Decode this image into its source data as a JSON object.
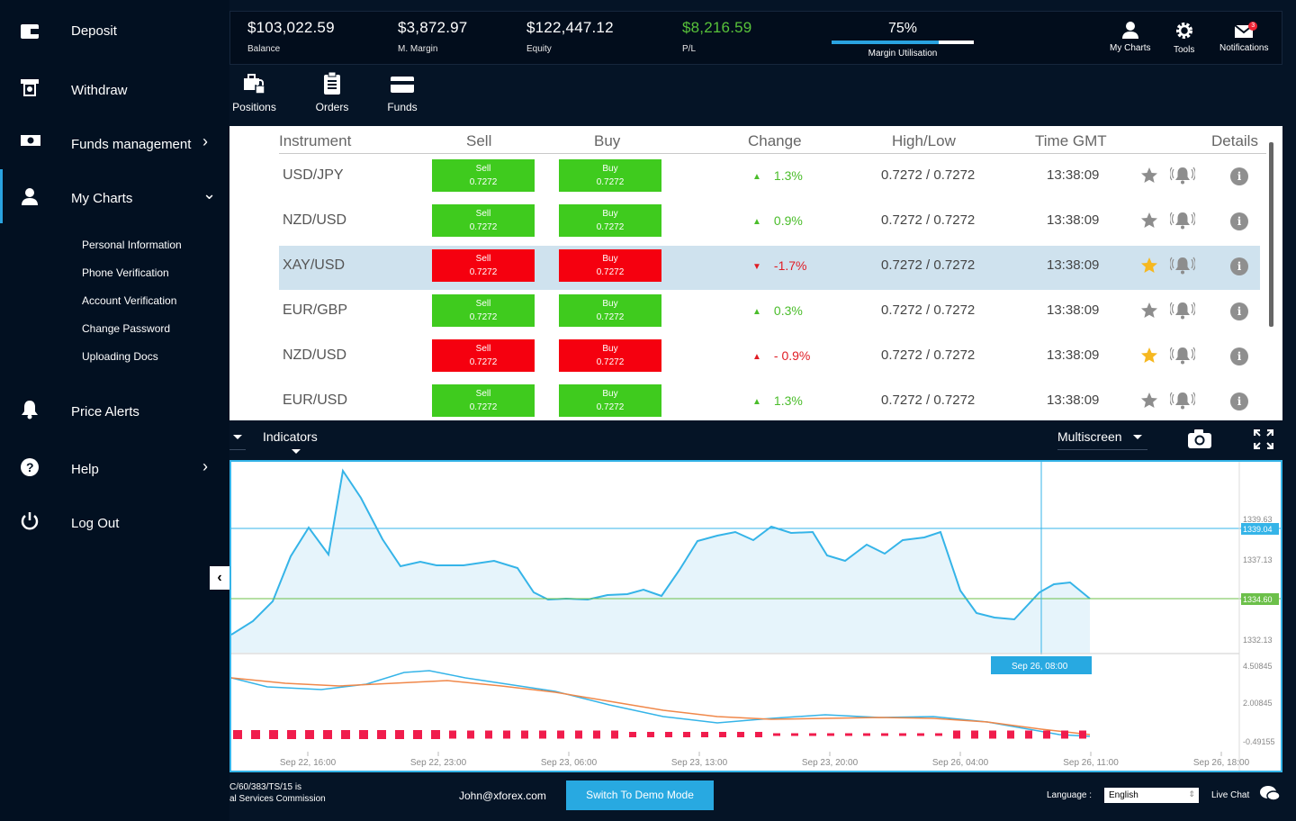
{
  "topbar": {
    "stats": [
      {
        "value": "$103,022.59",
        "label": "Balance"
      },
      {
        "value": "$3,872.97",
        "label": "M. Margin"
      },
      {
        "value": "$122,447.12",
        "label": "Equity"
      },
      {
        "value": "$8,216.59",
        "label": "P/L"
      }
    ],
    "margin_util": {
      "value": "75%",
      "label": "Margin Utilisation",
      "fraction": 0.75
    },
    "icons": [
      {
        "label": "My Charts",
        "icon": "user-icon"
      },
      {
        "label": "Tools",
        "icon": "gear-icon"
      },
      {
        "label": "Notifications",
        "icon": "mail-icon",
        "badge": "3"
      }
    ]
  },
  "nav": [
    {
      "label": "Positions",
      "icon": "briefcase-lock-icon"
    },
    {
      "label": "Orders",
      "icon": "clipboard-icon"
    },
    {
      "label": "Funds",
      "icon": "card-icon"
    }
  ],
  "table": {
    "headers": [
      "Instrument",
      "Sell",
      "Buy",
      "Change",
      "High/Low",
      "Time GMT",
      "Details"
    ],
    "rows": [
      {
        "instrument": "USD/JPY",
        "sell": "Sell",
        "sell_val": "0.7272",
        "buy": "Buy",
        "buy_val": "0.7272",
        "color": "green",
        "change": "1.3%",
        "dir": "up",
        "highlow": "0.7272 / 0.7272",
        "time": "13:38:09",
        "fav": false,
        "selected": false
      },
      {
        "instrument": "NZD/USD",
        "sell": "Sell",
        "sell_val": "0.7272",
        "buy": "Buy",
        "buy_val": "0.7272",
        "color": "green",
        "change": "0.9%",
        "dir": "up",
        "highlow": "0.7272 / 0.7272",
        "time": "13:38:09",
        "fav": false,
        "selected": false
      },
      {
        "instrument": "XAY/USD",
        "sell": "Sell",
        "sell_val": "0.7272",
        "buy": "Buy",
        "buy_val": "0.7272",
        "color": "red",
        "change": "-1.7%",
        "dir": "down",
        "highlow": "0.7272 / 0.7272",
        "time": "13:38:09",
        "fav": true,
        "selected": true
      },
      {
        "instrument": "EUR/GBP",
        "sell": "Sell",
        "sell_val": "0.7272",
        "buy": "Buy",
        "buy_val": "0.7272",
        "color": "green",
        "change": "0.3%",
        "dir": "up",
        "highlow": "0.7272 / 0.7272",
        "time": "13:38:09",
        "fav": false,
        "selected": false
      },
      {
        "instrument": "NZD/USD",
        "sell": "Sell",
        "sell_val": "0.7272",
        "buy": "Buy",
        "buy_val": "0.7272",
        "color": "red",
        "change": "- 0.9%",
        "dir": "down-up",
        "highlow": "0.7272 / 0.7272",
        "time": "13:38:09",
        "fav": true,
        "selected": false
      },
      {
        "instrument": "EUR/USD",
        "sell": "Sell",
        "sell_val": "0.7272",
        "buy": "Buy",
        "buy_val": "0.7272",
        "color": "green",
        "change": "1.3%",
        "dir": "up",
        "highlow": "0.7272 / 0.7272",
        "time": "13:38:09",
        "fav": false,
        "selected": false
      }
    ]
  },
  "chart_toolbar": {
    "indicators": "Indicators",
    "multiscreen": "Multiscreen"
  },
  "chart": {
    "price_labels": [
      "1339.63",
      "1337.13",
      "1332.13"
    ],
    "current_price": "1339.04",
    "green_price": "1334.60",
    "osc_labels": [
      "4.50845",
      "2.00845",
      "-0.49155"
    ],
    "crosshair_label": "Sep 26, 08:00",
    "x_labels": [
      "Sep 22, 16:00",
      "Sep 22, 23:00",
      "Sep 23, 06:00",
      "Sep 23, 13:00",
      "Sep 23, 20:00",
      "Sep 26, 04:00",
      "Sep 26, 11:00",
      "Sep 26, 18:00"
    ]
  },
  "sidebar": {
    "items": [
      {
        "label": "Deposit",
        "icon": "wallet-icon"
      },
      {
        "label": "Withdraw",
        "icon": "atm-icon"
      },
      {
        "label": "Funds management",
        "icon": "cash-icon",
        "chev": "›"
      },
      {
        "label": "My Charts",
        "icon": "user-icon",
        "chev": "⌄"
      },
      {
        "label": "Price Alerts",
        "icon": "bell-icon"
      },
      {
        "label": "Help",
        "icon": "question-icon",
        "chev": "›"
      },
      {
        "label": "Log Out",
        "icon": "power-icon"
      }
    ],
    "subitems": [
      "Personal Information",
      "Phone Verification",
      "Account Verification",
      "Change Password",
      "Uploading Docs"
    ]
  },
  "footer": {
    "reg_line1": "C/60/383/TS/15 is",
    "reg_line2": "al Services Commission",
    "email": "John@xforex.com",
    "demo": "Switch To Demo Mode",
    "lang_label": "Language :",
    "lang_value": "English",
    "live": "Live Chat"
  }
}
